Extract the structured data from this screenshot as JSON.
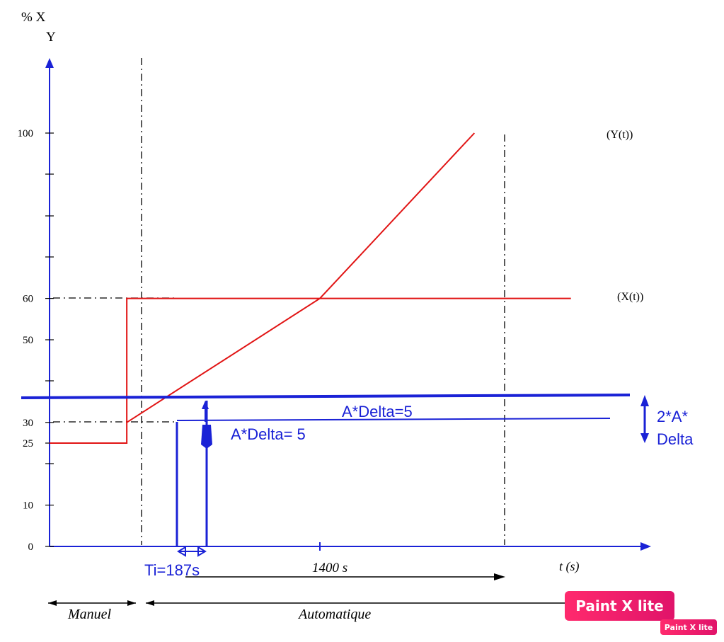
{
  "chart_data": {
    "type": "line",
    "ylabel_line1": "% X",
    "ylabel_line2": "Y",
    "y_ticks": [
      "0",
      "10",
      "25",
      "30",
      "50",
      "60",
      "100"
    ],
    "y_tick_values": [
      0,
      10,
      25,
      30,
      50,
      60,
      100
    ],
    "xlabel": "t (s)",
    "x_mark_label": "1400 s",
    "x_mark_value": 1400,
    "series": [
      {
        "name": "(Y(t))",
        "color": "#e11414",
        "points": [
          [
            400,
            30
          ],
          [
            1400,
            60
          ],
          [
            2200,
            100
          ]
        ]
      },
      {
        "name": "(X(t))",
        "color": "#e11414",
        "points": [
          [
            0,
            25
          ],
          [
            400,
            25
          ],
          [
            400,
            50
          ],
          [
            400,
            60
          ],
          [
            2700,
            60
          ]
        ]
      }
    ],
    "annotations": {
      "ti": "Ti=187s",
      "delta_upper": "A*Delta=5",
      "delta_lower": "A*Delta= 5",
      "band_line1": "2*A*",
      "band_line2": "Delta"
    },
    "modes": {
      "manual": "Manuel",
      "auto": "Automatique"
    },
    "colors": {
      "curve": "#e11414",
      "annotation": "#1a22d6",
      "axis": "#1a22d6"
    }
  },
  "watermark": {
    "big": "Paint X lite",
    "small": "Paint X lite"
  }
}
